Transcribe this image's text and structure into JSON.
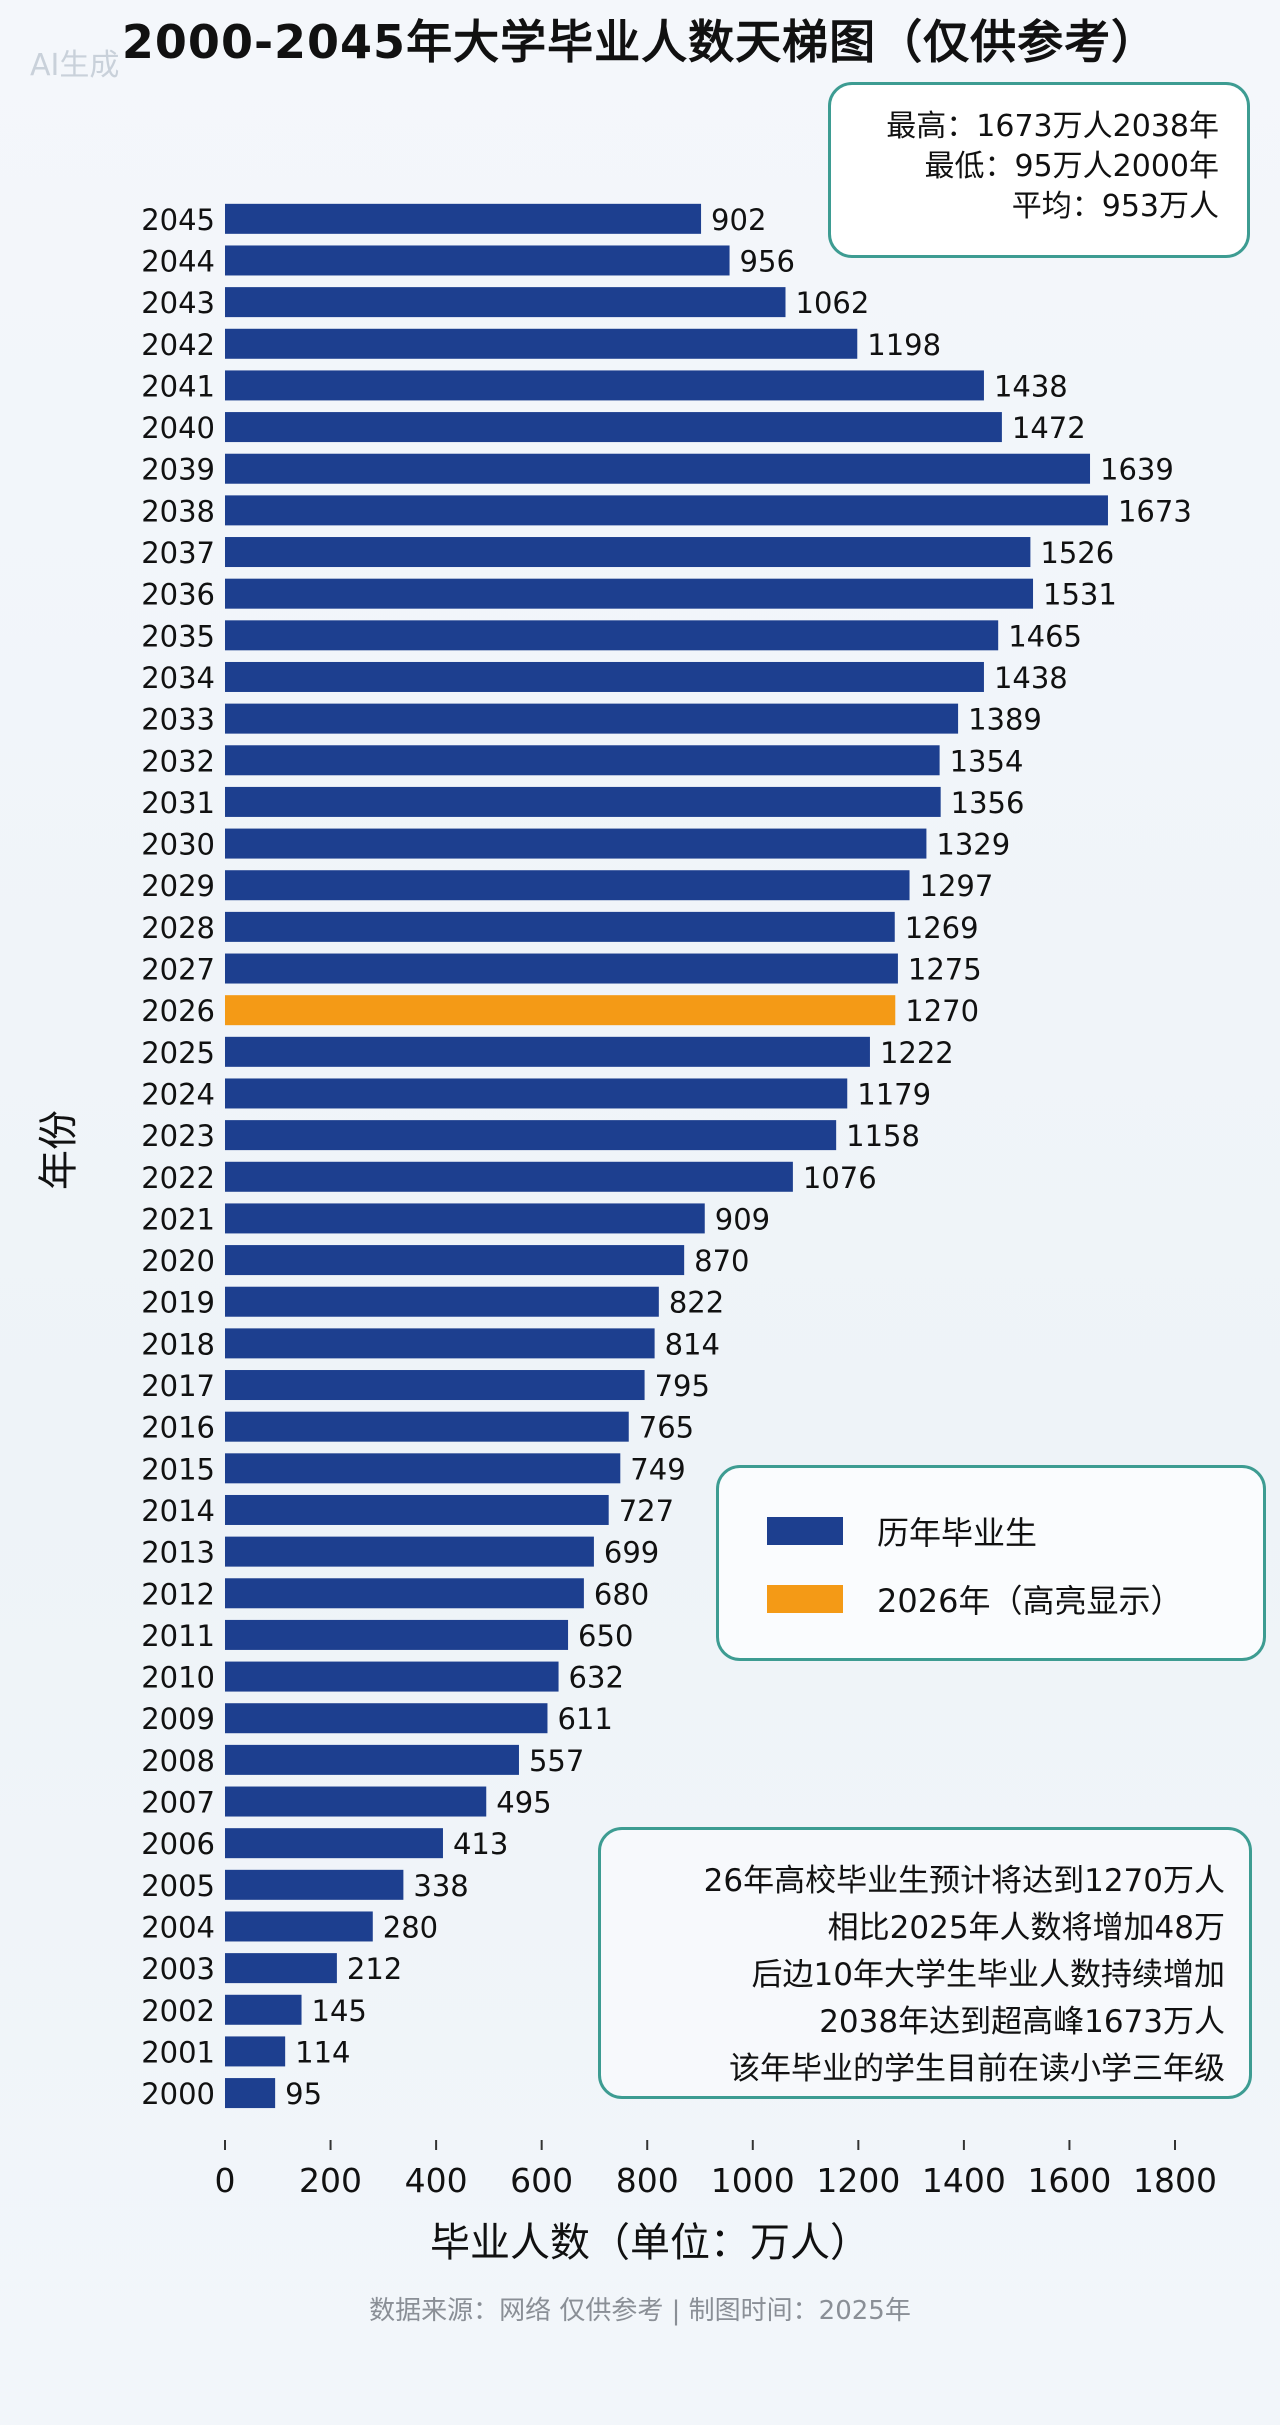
{
  "title": "2000-2045年大学毕业人数天梯图（仅供参考）",
  "watermark": "AI生成",
  "stats": {
    "line1": "最高：1673万人2038年",
    "line2": "最低：95万人2000年",
    "line3": "平均：953万人"
  },
  "legend": {
    "item1_label": "历年毕业生",
    "item2_label": "2026年（高亮显示）"
  },
  "note": {
    "line1": "26年高校毕业生预计将达到1270万人",
    "line2": "相比2025年人数将增加48万",
    "line3": "后边10年大学生毕业人数持续增加",
    "line4": "2038年达到超高峰1673万人",
    "line5": "该年毕业的学生目前在读小学三年级"
  },
  "source": "数据来源：网络 仅供参考 | 制图时间：2025年",
  "colors": {
    "bar": "#1d3f8f",
    "highlight": "#f49a16",
    "box_border": "#3d9c92"
  },
  "chart_data": {
    "type": "bar",
    "orientation": "horizontal",
    "xlabel": "毕业人数（单位：万人）",
    "ylabel": "年份",
    "xlim": [
      0,
      1800
    ],
    "xticks": [
      0,
      200,
      400,
      600,
      800,
      1000,
      1200,
      1400,
      1600,
      1800
    ],
    "grid": false,
    "highlight_category": "2026",
    "categories": [
      "2045",
      "2044",
      "2043",
      "2042",
      "2041",
      "2040",
      "2039",
      "2038",
      "2037",
      "2036",
      "2035",
      "2034",
      "2033",
      "2032",
      "2031",
      "2030",
      "2029",
      "2028",
      "2027",
      "2026",
      "2025",
      "2024",
      "2023",
      "2022",
      "2021",
      "2020",
      "2019",
      "2018",
      "2017",
      "2016",
      "2015",
      "2014",
      "2013",
      "2012",
      "2011",
      "2010",
      "2009",
      "2008",
      "2007",
      "2006",
      "2005",
      "2004",
      "2003",
      "2002",
      "2001",
      "2000"
    ],
    "values": [
      902,
      956,
      1062,
      1198,
      1438,
      1472,
      1639,
      1673,
      1526,
      1531,
      1465,
      1438,
      1389,
      1354,
      1356,
      1329,
      1297,
      1269,
      1275,
      1270,
      1222,
      1179,
      1158,
      1076,
      909,
      870,
      822,
      814,
      795,
      765,
      749,
      727,
      699,
      680,
      650,
      632,
      611,
      557,
      495,
      413,
      338,
      280,
      212,
      145,
      114,
      95
    ]
  }
}
